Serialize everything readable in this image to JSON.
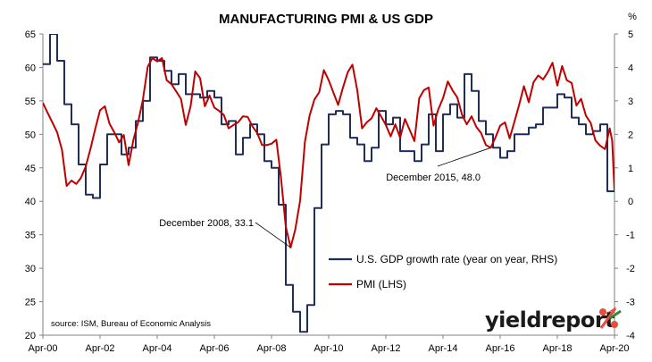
{
  "chart_data": {
    "type": "line",
    "title": "MANUFACTURING PMI & US GDP",
    "y2_unit_label": "%",
    "x_ticks": [
      "Apr-00",
      "Apr-02",
      "Apr-04",
      "Apr-06",
      "Apr-08",
      "Apr-10",
      "Apr-12",
      "Apr-14",
      "Apr-16",
      "Apr-18",
      "Apr-20"
    ],
    "x_range": [
      2000.25,
      2020.25
    ],
    "y_left": {
      "range": [
        20,
        65
      ],
      "ticks": [
        20,
        25,
        30,
        35,
        40,
        45,
        50,
        55,
        60,
        65
      ]
    },
    "y_right": {
      "range": [
        -4,
        5
      ],
      "ticks": [
        -4,
        -3,
        -2,
        -1,
        0,
        1,
        2,
        3,
        4,
        5
      ]
    },
    "grid": false,
    "legend_position": "bottom-center",
    "series": [
      {
        "name": "U.S. GDP growth rate (year on year, RHS)",
        "axis": "right",
        "color": "#1f2d5c",
        "points": [
          [
            2000.25,
            4.1
          ],
          [
            2000.5,
            5.0
          ],
          [
            2000.75,
            4.2
          ],
          [
            2001.0,
            2.9
          ],
          [
            2001.25,
            2.3
          ],
          [
            2001.5,
            1.1
          ],
          [
            2001.75,
            0.2
          ],
          [
            2002.0,
            0.1
          ],
          [
            2002.25,
            1.1
          ],
          [
            2002.5,
            2.0
          ],
          [
            2002.75,
            2.0
          ],
          [
            2003.0,
            1.4
          ],
          [
            2003.25,
            1.6
          ],
          [
            2003.5,
            2.4
          ],
          [
            2003.75,
            3.0
          ],
          [
            2004.0,
            4.3
          ],
          [
            2004.25,
            4.2
          ],
          [
            2004.5,
            3.9
          ],
          [
            2004.75,
            3.5
          ],
          [
            2005.0,
            3.8
          ],
          [
            2005.25,
            3.2
          ],
          [
            2005.5,
            3.2
          ],
          [
            2005.75,
            3.1
          ],
          [
            2006.0,
            3.3
          ],
          [
            2006.25,
            3.1
          ],
          [
            2006.5,
            2.3
          ],
          [
            2006.75,
            2.4
          ],
          [
            2007.0,
            1.4
          ],
          [
            2007.25,
            1.9
          ],
          [
            2007.5,
            2.3
          ],
          [
            2007.75,
            2.0
          ],
          [
            2008.0,
            1.2
          ],
          [
            2008.25,
            1.0
          ],
          [
            2008.5,
            -0.1
          ],
          [
            2008.75,
            -2.5
          ],
          [
            2009.0,
            -3.3
          ],
          [
            2009.25,
            -3.9
          ],
          [
            2009.5,
            -3.1
          ],
          [
            2009.75,
            -0.2
          ],
          [
            2010.0,
            1.7
          ],
          [
            2010.25,
            2.6
          ],
          [
            2010.5,
            2.7
          ],
          [
            2010.75,
            2.6
          ],
          [
            2011.0,
            1.9
          ],
          [
            2011.25,
            1.7
          ],
          [
            2011.5,
            1.2
          ],
          [
            2011.75,
            1.6
          ],
          [
            2012.0,
            2.7
          ],
          [
            2012.25,
            2.3
          ],
          [
            2012.5,
            2.5
          ],
          [
            2012.75,
            1.5
          ],
          [
            2013.0,
            1.5
          ],
          [
            2013.25,
            1.2
          ],
          [
            2013.5,
            1.7
          ],
          [
            2013.75,
            2.6
          ],
          [
            2014.0,
            1.5
          ],
          [
            2014.25,
            2.6
          ],
          [
            2014.5,
            2.9
          ],
          [
            2014.75,
            2.5
          ],
          [
            2015.0,
            3.8
          ],
          [
            2015.25,
            3.3
          ],
          [
            2015.5,
            2.4
          ],
          [
            2015.75,
            2.0
          ],
          [
            2016.0,
            1.6
          ],
          [
            2016.25,
            1.3
          ],
          [
            2016.5,
            1.5
          ],
          [
            2016.75,
            2.0
          ],
          [
            2017.0,
            2.0
          ],
          [
            2017.25,
            2.2
          ],
          [
            2017.5,
            2.3
          ],
          [
            2017.75,
            2.8
          ],
          [
            2018.0,
            2.8
          ],
          [
            2018.25,
            3.2
          ],
          [
            2018.5,
            3.1
          ],
          [
            2018.75,
            2.5
          ],
          [
            2019.0,
            2.3
          ],
          [
            2019.25,
            2.0
          ],
          [
            2019.5,
            2.1
          ],
          [
            2019.75,
            2.3
          ],
          [
            2020.0,
            0.3
          ],
          [
            2020.25,
            0.3
          ]
        ]
      },
      {
        "name": "PMI (LHS)",
        "axis": "left",
        "color": "#c00000",
        "points": [
          [
            2000.25,
            54.7
          ],
          [
            2000.42,
            53.2
          ],
          [
            2000.58,
            51.8
          ],
          [
            2000.75,
            50.3
          ],
          [
            2000.92,
            47.7
          ],
          [
            2001.08,
            42.3
          ],
          [
            2001.25,
            43.1
          ],
          [
            2001.42,
            42.6
          ],
          [
            2001.58,
            43.5
          ],
          [
            2001.75,
            45.2
          ],
          [
            2001.92,
            47.9
          ],
          [
            2002.08,
            50.8
          ],
          [
            2002.25,
            53.6
          ],
          [
            2002.42,
            54.2
          ],
          [
            2002.58,
            51.6
          ],
          [
            2002.75,
            50.3
          ],
          [
            2002.92,
            48.8
          ],
          [
            2003.08,
            49.9
          ],
          [
            2003.25,
            45.4
          ],
          [
            2003.42,
            49.2
          ],
          [
            2003.58,
            51.8
          ],
          [
            2003.75,
            55.2
          ],
          [
            2003.92,
            60.1
          ],
          [
            2004.08,
            61.4
          ],
          [
            2004.25,
            60.9
          ],
          [
            2004.42,
            61.4
          ],
          [
            2004.58,
            58.1
          ],
          [
            2004.75,
            57.5
          ],
          [
            2004.92,
            56.4
          ],
          [
            2005.08,
            55.3
          ],
          [
            2005.25,
            51.4
          ],
          [
            2005.42,
            54.2
          ],
          [
            2005.58,
            59.4
          ],
          [
            2005.75,
            58.4
          ],
          [
            2005.92,
            54.2
          ],
          [
            2006.08,
            55.8
          ],
          [
            2006.25,
            54.0
          ],
          [
            2006.42,
            53.5
          ],
          [
            2006.58,
            52.9
          ],
          [
            2006.75,
            50.9
          ],
          [
            2006.92,
            51.4
          ],
          [
            2007.08,
            51.8
          ],
          [
            2007.25,
            52.7
          ],
          [
            2007.42,
            52.6
          ],
          [
            2007.58,
            51.2
          ],
          [
            2007.75,
            50.2
          ],
          [
            2007.92,
            48.4
          ],
          [
            2008.08,
            48.4
          ],
          [
            2008.25,
            48.6
          ],
          [
            2008.42,
            49.2
          ],
          [
            2008.58,
            43.5
          ],
          [
            2008.75,
            36.2
          ],
          [
            2008.92,
            33.1
          ],
          [
            2009.08,
            35.8
          ],
          [
            2009.25,
            40.1
          ],
          [
            2009.42,
            48.9
          ],
          [
            2009.58,
            52.8
          ],
          [
            2009.75,
            55.2
          ],
          [
            2009.92,
            56.3
          ],
          [
            2010.08,
            59.6
          ],
          [
            2010.25,
            58.1
          ],
          [
            2010.42,
            56.2
          ],
          [
            2010.58,
            54.4
          ],
          [
            2010.75,
            57.0
          ],
          [
            2010.92,
            59.3
          ],
          [
            2011.08,
            60.4
          ],
          [
            2011.25,
            56.6
          ],
          [
            2011.42,
            50.9
          ],
          [
            2011.58,
            51.8
          ],
          [
            2011.75,
            52.4
          ],
          [
            2011.92,
            53.9
          ],
          [
            2012.08,
            52.7
          ],
          [
            2012.25,
            51.4
          ],
          [
            2012.42,
            49.7
          ],
          [
            2012.58,
            51.5
          ],
          [
            2012.75,
            49.5
          ],
          [
            2012.92,
            52.3
          ],
          [
            2013.08,
            50.7
          ],
          [
            2013.25,
            49.0
          ],
          [
            2013.42,
            55.4
          ],
          [
            2013.58,
            56.6
          ],
          [
            2013.75,
            57.0
          ],
          [
            2013.92,
            51.3
          ],
          [
            2014.08,
            53.7
          ],
          [
            2014.25,
            55.4
          ],
          [
            2014.42,
            57.9
          ],
          [
            2014.58,
            56.6
          ],
          [
            2014.75,
            55.5
          ],
          [
            2014.92,
            52.9
          ],
          [
            2015.08,
            51.5
          ],
          [
            2015.25,
            52.7
          ],
          [
            2015.42,
            51.1
          ],
          [
            2015.58,
            50.2
          ],
          [
            2015.75,
            48.4
          ],
          [
            2015.92,
            48.0
          ],
          [
            2016.08,
            49.5
          ],
          [
            2016.25,
            51.3
          ],
          [
            2016.42,
            51.8
          ],
          [
            2016.58,
            49.4
          ],
          [
            2016.75,
            51.9
          ],
          [
            2016.92,
            54.5
          ],
          [
            2017.08,
            57.2
          ],
          [
            2017.25,
            54.8
          ],
          [
            2017.42,
            57.8
          ],
          [
            2017.58,
            58.8
          ],
          [
            2017.75,
            58.2
          ],
          [
            2017.92,
            59.3
          ],
          [
            2018.08,
            60.7
          ],
          [
            2018.25,
            57.3
          ],
          [
            2018.42,
            60.2
          ],
          [
            2018.58,
            58.1
          ],
          [
            2018.75,
            57.7
          ],
          [
            2018.92,
            54.3
          ],
          [
            2019.08,
            55.3
          ],
          [
            2019.25,
            52.8
          ],
          [
            2019.42,
            51.7
          ],
          [
            2019.58,
            49.1
          ],
          [
            2019.75,
            48.3
          ],
          [
            2019.92,
            47.8
          ],
          [
            2020.08,
            50.9
          ],
          [
            2020.17,
            49.1
          ],
          [
            2020.25,
            41.5
          ]
        ]
      }
    ],
    "annotations": [
      {
        "text": "December 2008, 33.1",
        "x": 2008.92,
        "y": 33.1,
        "axis": "left"
      },
      {
        "text": "December 2015, 48.0",
        "x": 2015.92,
        "y": 48.0,
        "axis": "left"
      }
    ],
    "source": "source: ISM, Bureau of Economic Analysis",
    "logo": {
      "text": "yieldreport",
      "symbol": "%"
    }
  }
}
